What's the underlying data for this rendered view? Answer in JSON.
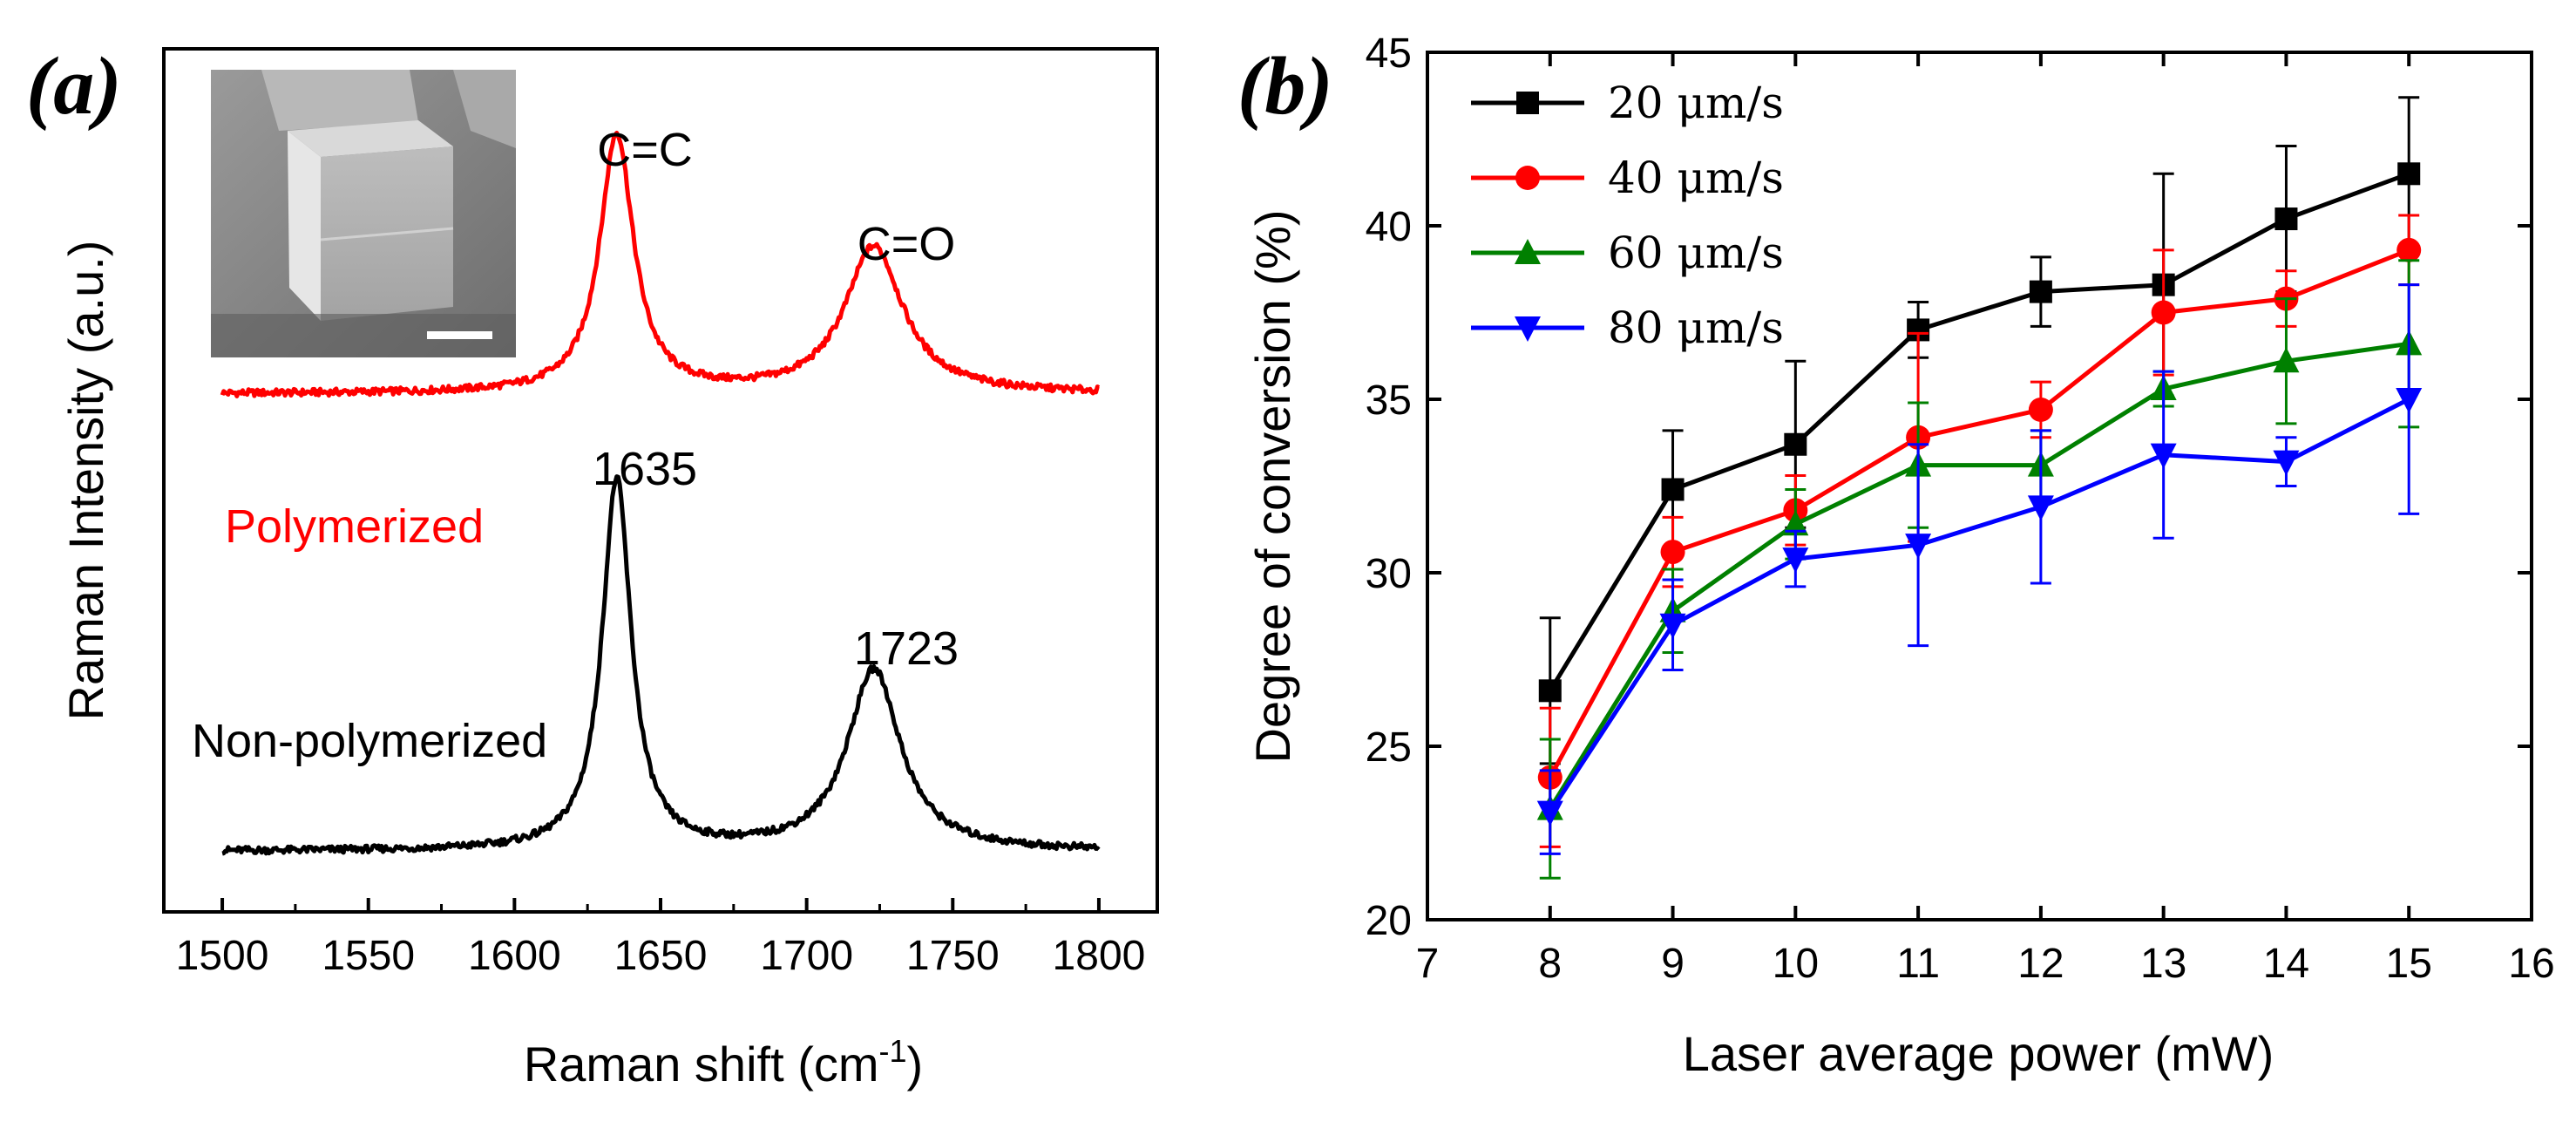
{
  "chart_data": [
    {
      "type": "line",
      "panel_label": "(a)",
      "title": "",
      "xlabel": "Raman shift (cm",
      "xlabel_sup": "-1",
      "xlabel_close": ")",
      "ylabel": "Raman Intensity (a.u.)",
      "xlim": [
        1480,
        1820
      ],
      "ylim": [
        0,
        1
      ],
      "x_ticks": [
        1500,
        1550,
        1600,
        1650,
        1700,
        1750,
        1800
      ],
      "y_ticks_shown": false,
      "grid": false,
      "series": [
        {
          "name": "Polymerized",
          "color": "#ff0000",
          "baseline": 0.6,
          "peaks": [
            {
              "center": 1635,
              "height": 0.3,
              "width": 7
            },
            {
              "center": 1723,
              "height": 0.17,
              "width": 12
            }
          ]
        },
        {
          "name": "Non-polymerized",
          "color": "#000000",
          "baseline": 0.07,
          "peaks": [
            {
              "center": 1635,
              "height": 0.43,
              "width": 6
            },
            {
              "center": 1723,
              "height": 0.21,
              "width": 11
            }
          ]
        }
      ],
      "annotations": {
        "cc": "C=C",
        "co": "C=O",
        "p1635": "1635",
        "p1723": "1723",
        "polymerized": "Polymerized",
        "non_polymerized": "Non-polymerized"
      },
      "inset": "SEM micrograph of a printed cube with scale bar"
    },
    {
      "type": "line",
      "panel_label": "(b)",
      "title": "",
      "xlabel": "Laser average power (mW)",
      "ylabel": "Degree of conversion (%)",
      "xlim": [
        7,
        16
      ],
      "ylim": [
        20,
        45
      ],
      "x_ticks": [
        7,
        8,
        9,
        10,
        11,
        12,
        13,
        14,
        15,
        16
      ],
      "y_ticks": [
        20,
        25,
        30,
        35,
        40,
        45
      ],
      "grid": false,
      "legend_position": "top-left",
      "x": [
        8,
        9,
        10,
        11,
        12,
        13,
        14,
        15
      ],
      "series": [
        {
          "name": "20 μm/s",
          "color": "#000000",
          "marker": "square",
          "values": [
            26.6,
            32.4,
            33.7,
            37.0,
            38.1,
            38.3,
            40.2,
            41.5
          ],
          "errors": [
            2.1,
            1.7,
            2.4,
            0.8,
            1.0,
            3.2,
            2.1,
            2.2
          ]
        },
        {
          "name": "40 μm/s",
          "color": "#ff0000",
          "marker": "circle",
          "values": [
            24.1,
            30.6,
            31.8,
            33.9,
            34.7,
            37.5,
            37.9,
            39.3
          ],
          "errors": [
            2.0,
            1.0,
            1.0,
            3.0,
            0.8,
            1.8,
            0.8,
            1.0
          ]
        },
        {
          "name": "60 μm/s",
          "color": "#008000",
          "marker": "triangle-up",
          "values": [
            23.2,
            28.9,
            31.4,
            33.1,
            33.1,
            35.3,
            36.1,
            36.6
          ],
          "errors": [
            2.0,
            1.2,
            1.0,
            1.8,
            1.0,
            0.5,
            1.8,
            2.4
          ]
        },
        {
          "name": "80 μm/s",
          "color": "#0000ff",
          "marker": "triangle-down",
          "values": [
            23.1,
            28.5,
            30.4,
            30.8,
            31.9,
            33.4,
            33.2,
            35.0
          ],
          "errors": [
            1.2,
            1.3,
            0.8,
            2.9,
            2.2,
            2.4,
            0.7,
            3.3
          ]
        }
      ]
    }
  ]
}
